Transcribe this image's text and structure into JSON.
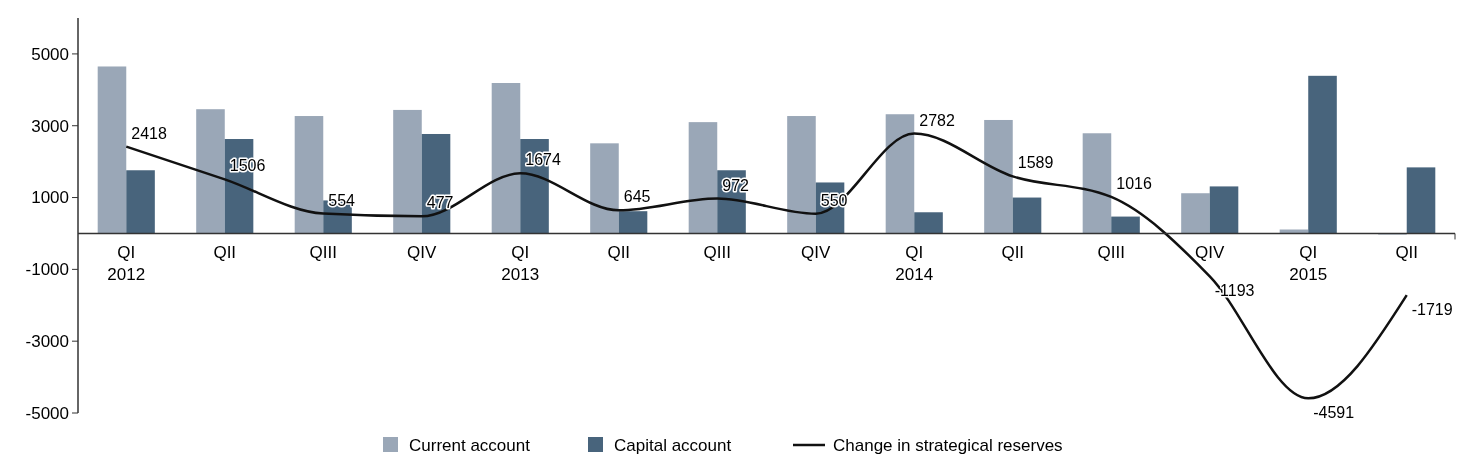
{
  "chart_data": {
    "type": "bar",
    "categories": [
      "QI\n2012",
      "QII",
      "QIII",
      "QIV",
      "QI\n2013",
      "QII",
      "QIII",
      "QIV",
      "QI\n2014",
      "QII",
      "QIII",
      "QIV",
      "QI\n2015",
      "QII"
    ],
    "series": [
      {
        "name": "Current account",
        "color": "#9aa7b7",
        "values": [
          4650,
          3460,
          3270,
          3440,
          4190,
          2510,
          3100,
          3270,
          3320,
          3160,
          2790,
          1120,
          110,
          -30
        ]
      },
      {
        "name": "Capital account",
        "color": "#48647c",
        "values": [
          1760,
          2630,
          920,
          2770,
          2630,
          620,
          1760,
          1420,
          590,
          1000,
          470,
          1310,
          4390,
          1840
        ]
      },
      {
        "name": "Change in strategical reserves",
        "type": "line",
        "color": "#111111",
        "values": [
          2418,
          1506,
          554,
          477,
          1674,
          645,
          972,
          550,
          2782,
          1589,
          1016,
          -1193,
          -4591,
          -1719
        ],
        "data_labels": true
      }
    ],
    "ylim": [
      -5000,
      6000
    ],
    "yticks": [
      -5000,
      -3000,
      -1000,
      1000,
      3000,
      5000
    ],
    "legend": "bottom",
    "grid": false
  }
}
